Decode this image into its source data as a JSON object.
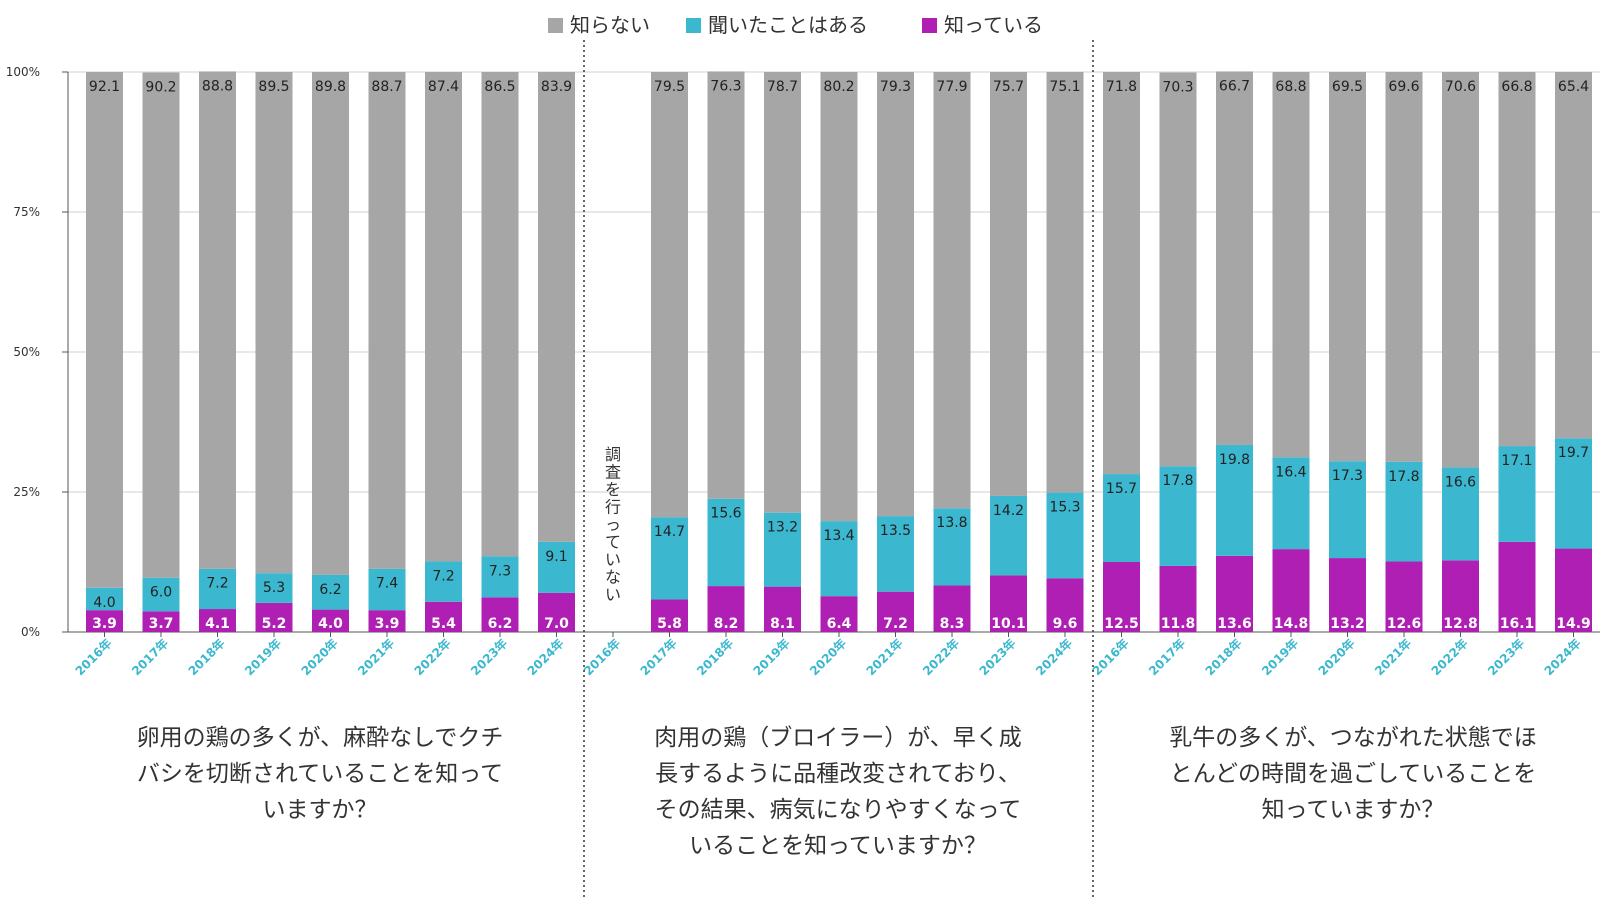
{
  "chart_data": {
    "type": "bar",
    "stacked": true,
    "legend": {
      "placement": "top-center",
      "entries": [
        {
          "name": "知らない",
          "color": "#a6a6a6"
        },
        {
          "name": "聞いたことはある",
          "color": "#3bb8cf"
        },
        {
          "name": "知っている",
          "color": "#b01fb3"
        }
      ]
    },
    "y_ticks": [
      "0%",
      "25%",
      "50%",
      "75%",
      "100%"
    ],
    "ylim": [
      0,
      100
    ],
    "grid": true,
    "no_survey_label": "調査を行っていない",
    "groups": [
      {
        "question": [
          "卵用の鶏の多くが、麻酔なしでクチ",
          "バシを切断されていることを知って",
          "いますか？"
        ],
        "categories": [
          "2016年",
          "2017年",
          "2018年",
          "2019年",
          "2020年",
          "2021年",
          "2022年",
          "2023年",
          "2024年"
        ],
        "series": [
          {
            "name": "知っている",
            "values": [
              3.9,
              3.7,
              4.1,
              5.2,
              4.0,
              3.9,
              5.4,
              6.2,
              7.0
            ]
          },
          {
            "name": "聞いたことはある",
            "values": [
              4.0,
              6.0,
              7.2,
              5.3,
              6.2,
              7.4,
              7.2,
              7.3,
              9.1
            ]
          },
          {
            "name": "知らない",
            "values": [
              92.1,
              90.2,
              88.8,
              89.5,
              89.8,
              88.7,
              87.4,
              86.5,
              83.9
            ]
          }
        ]
      },
      {
        "question": [
          "肉用の鶏（ブロイラー）が、早く成",
          "長するように品種改変されており、",
          "その結果、病気になりやすくなって",
          "いることを知っていますか？"
        ],
        "categories": [
          "2016年",
          "2017年",
          "2018年",
          "2019年",
          "2020年",
          "2021年",
          "2022年",
          "2023年",
          "2024年"
        ],
        "series": [
          {
            "name": "知っている",
            "values": [
              null,
              5.8,
              8.2,
              8.1,
              6.4,
              7.2,
              8.3,
              10.1,
              9.6
            ]
          },
          {
            "name": "聞いたことはある",
            "values": [
              null,
              14.7,
              15.6,
              13.2,
              13.4,
              13.5,
              13.8,
              14.2,
              15.3
            ]
          },
          {
            "name": "知らない",
            "values": [
              null,
              79.5,
              76.3,
              78.7,
              80.2,
              79.3,
              77.9,
              75.7,
              75.1
            ]
          }
        ]
      },
      {
        "question": [
          "乳牛の多くが、つながれた状態でほ",
          "とんどの時間を過ごしていることを",
          "知っていますか？"
        ],
        "categories": [
          "2016年",
          "2017年",
          "2018年",
          "2019年",
          "2020年",
          "2021年",
          "2022年",
          "2023年",
          "2024年"
        ],
        "series": [
          {
            "name": "知っている",
            "values": [
              12.5,
              11.8,
              13.6,
              14.8,
              13.2,
              12.6,
              12.8,
              16.1,
              14.9
            ]
          },
          {
            "name": "聞いたことはある",
            "values": [
              15.7,
              17.8,
              19.8,
              16.4,
              17.3,
              17.8,
              16.6,
              17.1,
              19.7
            ]
          },
          {
            "name": "知らない",
            "values": [
              71.8,
              70.3,
              66.7,
              68.8,
              69.5,
              69.6,
              70.6,
              66.8,
              65.4
            ]
          }
        ]
      }
    ]
  }
}
